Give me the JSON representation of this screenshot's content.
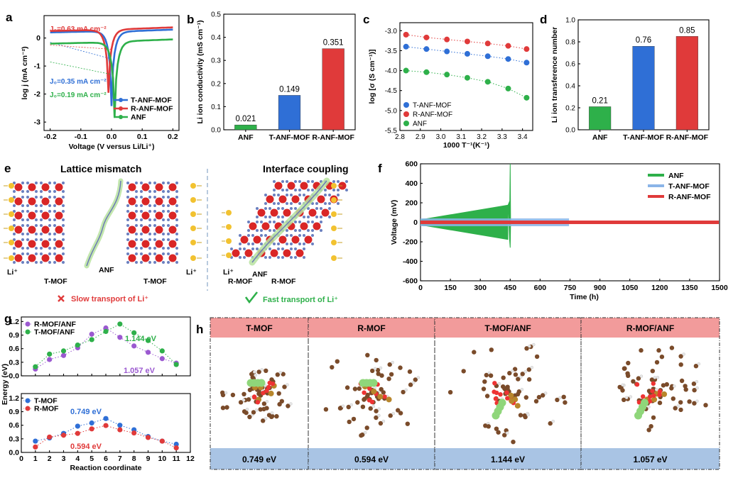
{
  "panels": {
    "a": "a",
    "b": "b",
    "c": "c",
    "d": "d",
    "e": "e",
    "f": "f",
    "g": "g",
    "h": "h"
  },
  "colors": {
    "green": "#2eb04a",
    "blue": "#2f6fd6",
    "red": "#e03a3a",
    "purple": "#9b59d0",
    "pink": "#f29b9b",
    "lightblue": "#a9c4e4",
    "gold": "#f2c230",
    "mofred": "#d92626",
    "brown": "#7a4b2a"
  },
  "panel_e": {
    "left_title": "Lattice mismatch",
    "right_title": "Interface coupling",
    "li_label": "Li⁺",
    "tmof_label": "T-MOF",
    "anf_label": "ANF",
    "rmof_label": "R-MOF",
    "slow_icon": "cross-icon",
    "fast_icon": "check-icon",
    "slow_text": "Slow transport of Li⁺",
    "fast_text": "Fast transport of Li⁺"
  },
  "panel_h": {
    "structures": [
      {
        "header": "T-MOF",
        "energy": "0.749 eV"
      },
      {
        "header": "R-MOF",
        "energy": "0.594 eV"
      },
      {
        "header": "T-MOF/ANF",
        "energy": "1.144 eV"
      },
      {
        "header": "R-MOF/ANF",
        "energy": "1.057 eV"
      }
    ]
  },
  "chart_data": [
    {
      "id": "a",
      "type": "line",
      "xlabel": "Voltage (V versus Li/Li⁺)",
      "ylabel": "log j (mA cm⁻²)",
      "xlim": [
        -0.22,
        0.22
      ],
      "xticks": [
        "-0.2",
        "-0.1",
        "0.0",
        "0.1",
        "0.2"
      ],
      "ylim": [
        -3.3,
        0.8
      ],
      "yticks": [
        "0",
        "-1",
        "-2",
        "-3"
      ],
      "annotations": [
        {
          "text": "J₀=0.63 mA cm⁻²",
          "color": "#e03a3a"
        },
        {
          "text": "J₀=0.35 mA cm⁻²",
          "color": "#2f6fd6"
        },
        {
          "text": "J₀=0.19 mA cm⁻²",
          "color": "#2eb04a"
        }
      ],
      "series": [
        {
          "name": "T-ANF-MOF",
          "color": "#2f6fd6",
          "min_x": 0.0,
          "min_y": -2.35,
          "left_end": 0.2,
          "right_end": 0.3
        },
        {
          "name": "R-ANF-MOF",
          "color": "#e03a3a",
          "min_x": -0.01,
          "min_y": -2.0,
          "left_end": 0.25,
          "right_end": 0.38
        },
        {
          "name": "ANF",
          "color": "#2eb04a",
          "min_x": 0.01,
          "min_y": -2.9,
          "left_end": -0.2,
          "right_end": -0.05
        }
      ]
    },
    {
      "id": "b",
      "type": "bar",
      "ylabel": "Li ion conductivity (mS cm⁻¹)",
      "categories": [
        "ANF",
        "T-ANF-MOF",
        "R-ANF-MOF"
      ],
      "values": [
        0.021,
        0.149,
        0.351
      ],
      "value_labels": [
        "0.021",
        "0.149",
        "0.351"
      ],
      "colors": [
        "#2eb04a",
        "#2f6fd6",
        "#e03a3a"
      ],
      "ylim": [
        0,
        0.5
      ],
      "yticks": [
        "0.0",
        "0.1",
        "0.2",
        "0.3",
        "0.4",
        "0.5"
      ]
    },
    {
      "id": "c",
      "type": "scatter",
      "xlabel": "1000 T⁻¹(K⁻¹)",
      "ylabel": "log [σ (S cm⁻¹)]",
      "xlim": [
        2.8,
        3.45
      ],
      "xticks": [
        "2.8",
        "2.9",
        "3.0",
        "3.1",
        "3.2",
        "3.3",
        "3.4"
      ],
      "ylim": [
        -5.5,
        -2.8
      ],
      "yticks": [
        "-3.0",
        "-3.5",
        "-4.0",
        "-4.5",
        "-5.0",
        "-5.5"
      ],
      "x": [
        2.83,
        2.93,
        3.03,
        3.13,
        3.23,
        3.33,
        3.42
      ],
      "series": [
        {
          "name": "T-ANF-MOF",
          "color": "#2f6fd6",
          "values": [
            -3.4,
            -3.46,
            -3.52,
            -3.58,
            -3.64,
            -3.71,
            -3.8
          ]
        },
        {
          "name": "R-ANF-MOF",
          "color": "#e03a3a",
          "values": [
            -3.1,
            -3.17,
            -3.22,
            -3.27,
            -3.32,
            -3.38,
            -3.46
          ]
        },
        {
          "name": "ANF",
          "color": "#2eb04a",
          "values": [
            -4.0,
            -4.04,
            -4.1,
            -4.18,
            -4.28,
            -4.45,
            -4.68
          ]
        }
      ]
    },
    {
      "id": "d",
      "type": "bar",
      "ylabel": "Li ion transference number",
      "categories": [
        "ANF",
        "T-ANF-MOF",
        "R-ANF-MOF"
      ],
      "values": [
        0.21,
        0.76,
        0.85
      ],
      "value_labels": [
        "0.21",
        "0.76",
        "0.85"
      ],
      "colors": [
        "#2eb04a",
        "#2f6fd6",
        "#e03a3a"
      ],
      "ylim": [
        0,
        1.0
      ],
      "yticks": [
        "0.0",
        "0.2",
        "0.4",
        "0.6",
        "0.8",
        "1.0"
      ]
    },
    {
      "id": "f",
      "type": "line",
      "xlabel": "Time (h)",
      "ylabel": "Voltage (mV)",
      "xlim": [
        0,
        1500
      ],
      "xticks": [
        "0",
        "150",
        "300",
        "450",
        "600",
        "750",
        "900",
        "1050",
        "1200",
        "1350",
        "1500"
      ],
      "ylim": [
        -600,
        600
      ],
      "yticks": [
        "600",
        "400",
        "200",
        "0",
        "-200",
        "-400",
        "-600"
      ],
      "series": [
        {
          "name": "ANF",
          "color": "#2eb04a",
          "end_time": 455,
          "amp_start": 30,
          "amp_end": 180,
          "spike_time": 450,
          "spike_high": 600,
          "spike_low": -260
        },
        {
          "name": "T-ANF-MOF",
          "color": "#8ab4e8",
          "end_time": 745,
          "amp": 40
        },
        {
          "name": "R-ANF-MOF",
          "color": "#e03a3a",
          "end_time": 1500,
          "amp": 18
        }
      ]
    },
    {
      "id": "g_top",
      "type": "line",
      "ylabel": "Energy (eV)",
      "xlim": [
        0,
        12
      ],
      "xticks": [
        "0",
        "1",
        "2",
        "3",
        "4",
        "5",
        "6",
        "7",
        "8",
        "9",
        "10",
        "11",
        "12"
      ],
      "ylim": [
        0,
        1.3
      ],
      "yticks": [
        "0.0",
        "0.3",
        "0.6",
        "0.9",
        "1.2"
      ],
      "annotations": [
        {
          "text": "1.144 eV",
          "color": "#2eb04a"
        },
        {
          "text": "1.057 eV",
          "color": "#9b59d0"
        }
      ],
      "x": [
        1,
        2,
        3,
        4,
        5,
        6,
        7,
        8,
        9,
        10,
        11
      ],
      "series": [
        {
          "name": "R-MOF/ANF",
          "color": "#9b59d0",
          "values": [
            0.15,
            0.36,
            0.45,
            0.62,
            0.92,
            1.057,
            0.85,
            0.66,
            0.52,
            0.38,
            0.28
          ]
        },
        {
          "name": "T-MOF/ANF",
          "color": "#2eb04a",
          "values": [
            0.2,
            0.48,
            0.55,
            0.68,
            0.8,
            0.98,
            1.144,
            0.95,
            0.78,
            0.55,
            0.25
          ]
        }
      ]
    },
    {
      "id": "g_bottom",
      "type": "line",
      "xlabel": "Reaction coordinate",
      "xlim": [
        0,
        12
      ],
      "xticks": [
        "0",
        "1",
        "2",
        "3",
        "4",
        "5",
        "6",
        "7",
        "8",
        "9",
        "10",
        "11",
        "12"
      ],
      "ylim": [
        0,
        1.3
      ],
      "yticks": [
        "0.0",
        "0.3",
        "0.6",
        "0.9",
        "1.2"
      ],
      "annotations": [
        {
          "text": "0.749 eV",
          "color": "#2f6fd6"
        },
        {
          "text": "0.594 eV",
          "color": "#e03a3a"
        }
      ],
      "x": [
        1,
        2,
        3,
        4,
        5,
        6,
        7,
        8,
        9,
        10,
        11
      ],
      "series": [
        {
          "name": "T-MOF",
          "color": "#2f6fd6",
          "values": [
            0.25,
            0.32,
            0.42,
            0.58,
            0.65,
            0.749,
            0.6,
            0.5,
            0.35,
            0.25,
            0.18
          ]
        },
        {
          "name": "R-MOF",
          "color": "#e03a3a",
          "values": [
            0.12,
            0.34,
            0.38,
            0.42,
            0.52,
            0.594,
            0.5,
            0.43,
            0.33,
            0.25,
            0.1
          ]
        }
      ]
    }
  ]
}
